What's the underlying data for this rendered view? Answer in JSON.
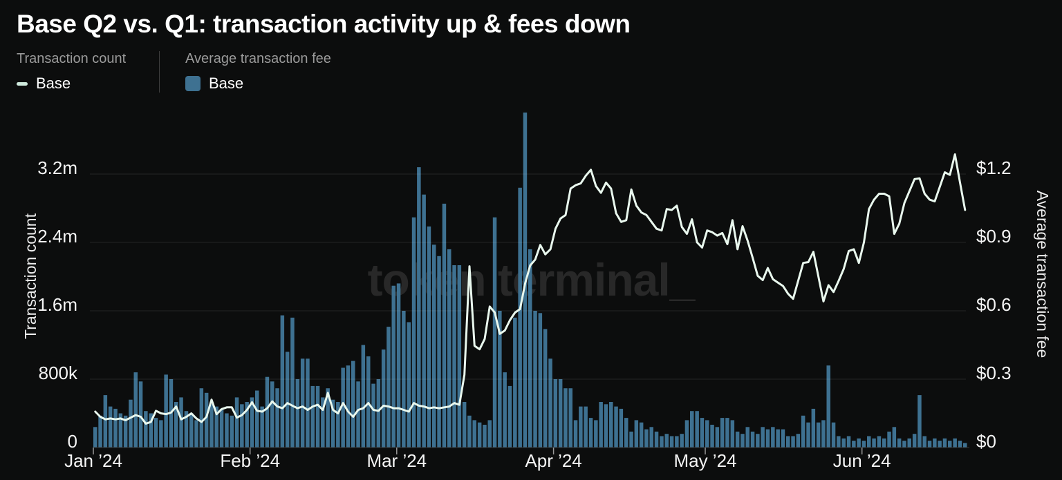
{
  "title": "Base Q2 vs. Q1: transaction activity up & fees down",
  "watermark": "token terminal_",
  "legend": {
    "transaction_count": {
      "heading": "Transaction count",
      "series_label": "Base"
    },
    "average_fee": {
      "heading": "Average transaction fee",
      "series_label": "Base"
    }
  },
  "colors": {
    "background": "#0c0d0d",
    "bar": "#3e7191",
    "line": "#e9f8ee",
    "grid": "rgba(255,255,255,0.10)",
    "axis_line": "#383838",
    "tick_text": "#f5f5f5",
    "legend_heading_text": "#9b9b9b",
    "legend_swatch_dash": "#cfeadd",
    "watermark_text": "#282828",
    "divider": "#3d3d3d"
  },
  "chart_data": {
    "type": "bar+line (dual axis)",
    "granularity": "daily",
    "x_start": "Jan 1 ’24",
    "x_end": "Jun 21 ’24",
    "legend_position": "top-left",
    "grid": "horizontal only",
    "x_ticks": [
      {
        "label": "Jan ’24",
        "day": 0
      },
      {
        "label": "Feb ’24",
        "day": 31
      },
      {
        "label": "Mar ’24",
        "day": 60
      },
      {
        "label": "Apr ’24",
        "day": 91
      },
      {
        "label": "May ’24",
        "day": 121
      },
      {
        "label": "Jun ’24",
        "day": 152
      }
    ],
    "left_axis": {
      "title": "Transaction count",
      "ticks": [
        {
          "label": "0",
          "value": 0
        },
        {
          "label": "800k",
          "value": 0.8
        },
        {
          "label": "1.6m",
          "value": 1.6
        },
        {
          "label": "2.4m",
          "value": 2.4
        },
        {
          "label": "3.2m",
          "value": 3.2
        }
      ],
      "max_millions": 4.0
    },
    "right_axis": {
      "title": "Average transaction fee",
      "ticks": [
        {
          "label": "$0",
          "value": 0
        },
        {
          "label": "$0.3",
          "value": 0.3
        },
        {
          "label": "$0.6",
          "value": 0.6
        },
        {
          "label": "$0.9",
          "value": 0.9
        },
        {
          "label": "$1.2",
          "value": 1.2
        }
      ],
      "max_usd": 1.5
    },
    "series": [
      {
        "name": "Base",
        "group": "Transaction count",
        "type": "line",
        "axis": "left",
        "unit": "transactions (millions)",
        "values_millions": [
          0.42,
          0.36,
          0.33,
          0.34,
          0.33,
          0.34,
          0.32,
          0.35,
          0.38,
          0.36,
          0.28,
          0.3,
          0.43,
          0.4,
          0.39,
          0.41,
          0.48,
          0.33,
          0.36,
          0.4,
          0.34,
          0.3,
          0.36,
          0.56,
          0.39,
          0.45,
          0.47,
          0.47,
          0.35,
          0.38,
          0.44,
          0.53,
          0.43,
          0.42,
          0.46,
          0.54,
          0.48,
          0.46,
          0.52,
          0.49,
          0.46,
          0.48,
          0.44,
          0.48,
          0.5,
          0.44,
          0.64,
          0.44,
          0.4,
          0.52,
          0.42,
          0.36,
          0.44,
          0.46,
          0.52,
          0.44,
          0.43,
          0.49,
          0.48,
          0.46,
          0.46,
          0.44,
          0.42,
          0.52,
          0.49,
          0.48,
          0.46,
          0.47,
          0.46,
          0.47,
          0.48,
          0.52,
          0.5,
          0.85,
          2.12,
          1.19,
          1.15,
          1.27,
          1.65,
          1.58,
          1.33,
          1.37,
          1.49,
          1.58,
          1.62,
          1.92,
          2.13,
          2.2,
          2.37,
          2.26,
          2.32,
          2.56,
          2.68,
          2.72,
          3.03,
          3.07,
          3.09,
          3.18,
          3.25,
          3.06,
          2.98,
          3.1,
          3.03,
          2.74,
          2.64,
          2.66,
          3.02,
          2.83,
          2.75,
          2.72,
          2.64,
          2.56,
          2.54,
          2.79,
          2.78,
          2.83,
          2.58,
          2.5,
          2.67,
          2.4,
          2.34,
          2.54,
          2.52,
          2.48,
          2.51,
          2.38,
          2.66,
          2.32,
          2.59,
          2.42,
          2.22,
          2.01,
          1.96,
          2.1,
          1.97,
          1.93,
          1.89,
          1.8,
          1.74,
          1.95,
          2.16,
          2.17,
          2.29,
          2.0,
          1.71,
          1.9,
          1.82,
          1.95,
          2.09,
          2.3,
          2.32,
          2.16,
          2.4,
          2.79,
          2.9,
          2.97,
          2.97,
          2.94,
          2.5,
          2.62,
          2.86,
          3.0,
          3.14,
          3.15,
          2.97,
          2.9,
          2.88,
          3.05,
          3.22,
          3.19,
          3.43,
          3.1,
          2.78
        ]
      },
      {
        "name": "Base",
        "group": "Average transaction fee",
        "type": "bar",
        "axis": "right",
        "unit": "USD",
        "values_usd": [
          0.09,
          0.14,
          0.23,
          0.18,
          0.17,
          0.15,
          0.14,
          0.21,
          0.33,
          0.29,
          0.16,
          0.15,
          0.13,
          0.12,
          0.32,
          0.3,
          0.2,
          0.22,
          0.16,
          0.15,
          0.12,
          0.26,
          0.24,
          0.19,
          0.18,
          0.17,
          0.15,
          0.14,
          0.22,
          0.19,
          0.2,
          0.22,
          0.25,
          0.18,
          0.31,
          0.29,
          0.26,
          0.58,
          0.42,
          0.57,
          0.3,
          0.39,
          0.39,
          0.27,
          0.27,
          0.22,
          0.26,
          0.21,
          0.2,
          0.35,
          0.36,
          0.38,
          0.29,
          0.45,
          0.4,
          0.28,
          0.3,
          0.43,
          0.53,
          0.71,
          0.72,
          0.6,
          0.55,
          1.01,
          1.23,
          1.11,
          0.97,
          0.89,
          0.84,
          1.07,
          0.87,
          0.8,
          0.8,
          0.2,
          0.14,
          0.12,
          0.11,
          0.1,
          0.12,
          1.01,
          0.6,
          0.33,
          0.27,
          0.57,
          1.14,
          1.47,
          0.87,
          0.6,
          0.59,
          0.52,
          0.39,
          0.3,
          0.3,
          0.26,
          0.26,
          0.12,
          0.18,
          0.18,
          0.13,
          0.12,
          0.2,
          0.19,
          0.2,
          0.18,
          0.17,
          0.13,
          0.07,
          0.12,
          0.11,
          0.08,
          0.09,
          0.07,
          0.05,
          0.06,
          0.05,
          0.05,
          0.06,
          0.12,
          0.16,
          0.16,
          0.13,
          0.12,
          0.1,
          0.09,
          0.13,
          0.13,
          0.12,
          0.07,
          0.06,
          0.09,
          0.07,
          0.06,
          0.09,
          0.08,
          0.09,
          0.08,
          0.08,
          0.05,
          0.05,
          0.06,
          0.14,
          0.11,
          0.17,
          0.11,
          0.12,
          0.36,
          0.11,
          0.05,
          0.04,
          0.05,
          0.03,
          0.04,
          0.03,
          0.05,
          0.04,
          0.05,
          0.04,
          0.07,
          0.09,
          0.04,
          0.03,
          0.04,
          0.06,
          0.23,
          0.05,
          0.03,
          0.04,
          0.03,
          0.04,
          0.03,
          0.04,
          0.03,
          0.02
        ]
      }
    ]
  }
}
